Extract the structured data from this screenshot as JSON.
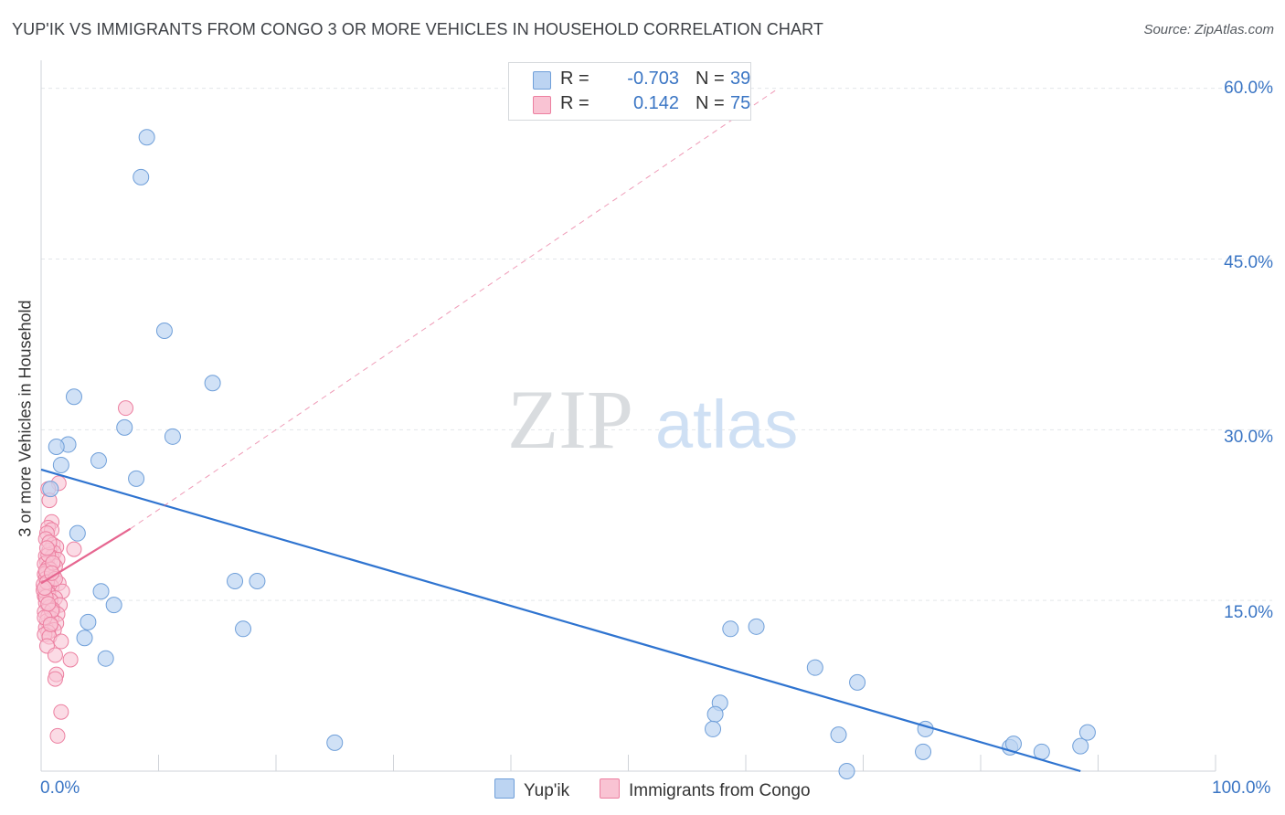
{
  "header": {
    "title": "YUP'IK VS IMMIGRANTS FROM CONGO 3 OR MORE VEHICLES IN HOUSEHOLD CORRELATION CHART",
    "source": "Source: ZipAtlas.com"
  },
  "watermark": {
    "zip": "ZIP",
    "atlas": "atlas"
  },
  "legend": {
    "rows": [
      {
        "r_label": "R =",
        "r_value": "-0.703",
        "n_label": "N =",
        "n_value": "39",
        "color": "#a9c8f0"
      },
      {
        "r_label": "R =",
        "r_value": "0.142",
        "n_label": "N =",
        "n_value": "75",
        "color": "#f7b6c8"
      }
    ]
  },
  "bottom_legend": {
    "yupik": "Yup'ik",
    "congo": "Immigrants from Congo"
  },
  "axes": {
    "ylabel": "3 or more Vehicles in Household",
    "y_ticks": [
      "60.0%",
      "45.0%",
      "30.0%",
      "15.0%"
    ],
    "x_tick_left": "0.0%",
    "x_tick_right": "100.0%"
  },
  "colors": {
    "blue_fill": "#bcd4f2",
    "blue_stroke": "#6f9fd9",
    "blue_line": "#2f74d0",
    "pink_fill": "#f9c3d3",
    "pink_stroke": "#ec7fa0",
    "pink_line": "#e66690",
    "grid": "#e3e6ea",
    "tick_text": "#3a75c4"
  },
  "chart_data": {
    "type": "scatter",
    "title": "YUP'IK VS IMMIGRANTS FROM CONGO 3 OR MORE VEHICLES IN HOUSEHOLD CORRELATION CHART",
    "xlabel": "",
    "ylabel": "3 or more Vehicles in Household",
    "xlim": [
      0,
      100
    ],
    "ylim": [
      0,
      61.5
    ],
    "y_ticks": [
      15,
      30,
      45,
      60
    ],
    "grid": true,
    "series": [
      {
        "name": "Yup'ik",
        "points": [
          [
            9.0,
            55.7
          ],
          [
            8.5,
            52.2
          ],
          [
            10.5,
            38.7
          ],
          [
            14.6,
            34.1
          ],
          [
            2.8,
            32.9
          ],
          [
            7.1,
            30.2
          ],
          [
            11.2,
            29.4
          ],
          [
            2.3,
            28.7
          ],
          [
            1.3,
            28.5
          ],
          [
            1.7,
            26.9
          ],
          [
            4.9,
            27.3
          ],
          [
            8.1,
            25.7
          ],
          [
            0.8,
            24.8
          ],
          [
            3.1,
            20.9
          ],
          [
            16.5,
            16.7
          ],
          [
            18.4,
            16.7
          ],
          [
            5.1,
            15.8
          ],
          [
            6.2,
            14.6
          ],
          [
            4.0,
            13.1
          ],
          [
            3.7,
            11.7
          ],
          [
            17.2,
            12.5
          ],
          [
            5.5,
            9.9
          ],
          [
            25.0,
            2.5
          ],
          [
            58.7,
            12.5
          ],
          [
            60.9,
            12.7
          ],
          [
            65.9,
            9.1
          ],
          [
            68.6,
            0.0
          ],
          [
            69.5,
            7.8
          ],
          [
            57.8,
            6.0
          ],
          [
            57.4,
            5.0
          ],
          [
            57.2,
            3.7
          ],
          [
            67.9,
            3.2
          ],
          [
            75.1,
            1.7
          ],
          [
            75.3,
            3.7
          ],
          [
            82.5,
            2.1
          ],
          [
            82.8,
            2.4
          ],
          [
            85.2,
            1.7
          ],
          [
            88.5,
            2.2
          ],
          [
            89.1,
            3.4
          ]
        ]
      },
      {
        "name": "Immigrants from Congo",
        "points": [
          [
            7.2,
            31.9
          ],
          [
            1.5,
            25.3
          ],
          [
            0.6,
            24.8
          ],
          [
            0.7,
            23.8
          ],
          [
            0.9,
            21.9
          ],
          [
            0.6,
            21.4
          ],
          [
            0.9,
            21.2
          ],
          [
            0.5,
            20.9
          ],
          [
            0.4,
            20.4
          ],
          [
            1.0,
            19.9
          ],
          [
            1.3,
            19.7
          ],
          [
            2.8,
            19.5
          ],
          [
            0.7,
            19.4
          ],
          [
            1.1,
            19.2
          ],
          [
            0.4,
            18.9
          ],
          [
            0.9,
            18.8
          ],
          [
            1.4,
            18.6
          ],
          [
            0.5,
            18.4
          ],
          [
            0.3,
            18.2
          ],
          [
            1.2,
            18.0
          ],
          [
            0.6,
            17.9
          ],
          [
            0.8,
            17.7
          ],
          [
            0.5,
            17.5
          ],
          [
            0.3,
            17.3
          ],
          [
            1.1,
            17.1
          ],
          [
            0.4,
            16.9
          ],
          [
            0.7,
            16.7
          ],
          [
            1.5,
            16.5
          ],
          [
            0.2,
            16.4
          ],
          [
            0.9,
            16.2
          ],
          [
            0.5,
            16.0
          ],
          [
            1.8,
            15.8
          ],
          [
            0.6,
            15.6
          ],
          [
            0.3,
            15.4
          ],
          [
            1.2,
            15.2
          ],
          [
            0.8,
            15.0
          ],
          [
            0.4,
            14.8
          ],
          [
            1.6,
            14.6
          ],
          [
            0.7,
            14.4
          ],
          [
            1.0,
            14.2
          ],
          [
            0.3,
            14.0
          ],
          [
            1.4,
            13.8
          ],
          [
            0.6,
            13.6
          ],
          [
            0.9,
            13.4
          ],
          [
            0.5,
            13.2
          ],
          [
            1.3,
            13.0
          ],
          [
            0.8,
            12.8
          ],
          [
            0.4,
            12.6
          ],
          [
            1.1,
            12.4
          ],
          [
            0.6,
            12.2
          ],
          [
            0.3,
            12.0
          ],
          [
            0.7,
            11.8
          ],
          [
            1.7,
            11.4
          ],
          [
            0.5,
            11.0
          ],
          [
            1.2,
            10.2
          ],
          [
            2.5,
            9.8
          ],
          [
            1.3,
            8.5
          ],
          [
            1.2,
            8.1
          ],
          [
            1.7,
            5.2
          ],
          [
            1.4,
            3.1
          ],
          [
            0.4,
            17.6
          ],
          [
            0.6,
            19.0
          ],
          [
            0.2,
            15.9
          ],
          [
            0.9,
            14.1
          ],
          [
            0.5,
            16.6
          ],
          [
            1.0,
            18.3
          ],
          [
            0.3,
            13.5
          ],
          [
            0.7,
            20.1
          ],
          [
            0.8,
            12.9
          ],
          [
            0.4,
            15.3
          ],
          [
            1.2,
            16.9
          ],
          [
            0.6,
            14.7
          ],
          [
            0.9,
            17.4
          ],
          [
            0.5,
            19.6
          ],
          [
            0.3,
            16.1
          ]
        ]
      }
    ],
    "trendlines": [
      {
        "series": "Yup'ik",
        "x": [
          0,
          88.5
        ],
        "y": [
          26.5,
          0
        ]
      },
      {
        "series": "Immigrants from Congo",
        "x": [
          0,
          7.6
        ],
        "y": [
          16.5,
          21.3
        ]
      },
      {
        "series": "Immigrants from Congo",
        "style": "dashed",
        "x": [
          7.6,
          62.5
        ],
        "y": [
          21.3,
          59.8
        ]
      }
    ]
  }
}
